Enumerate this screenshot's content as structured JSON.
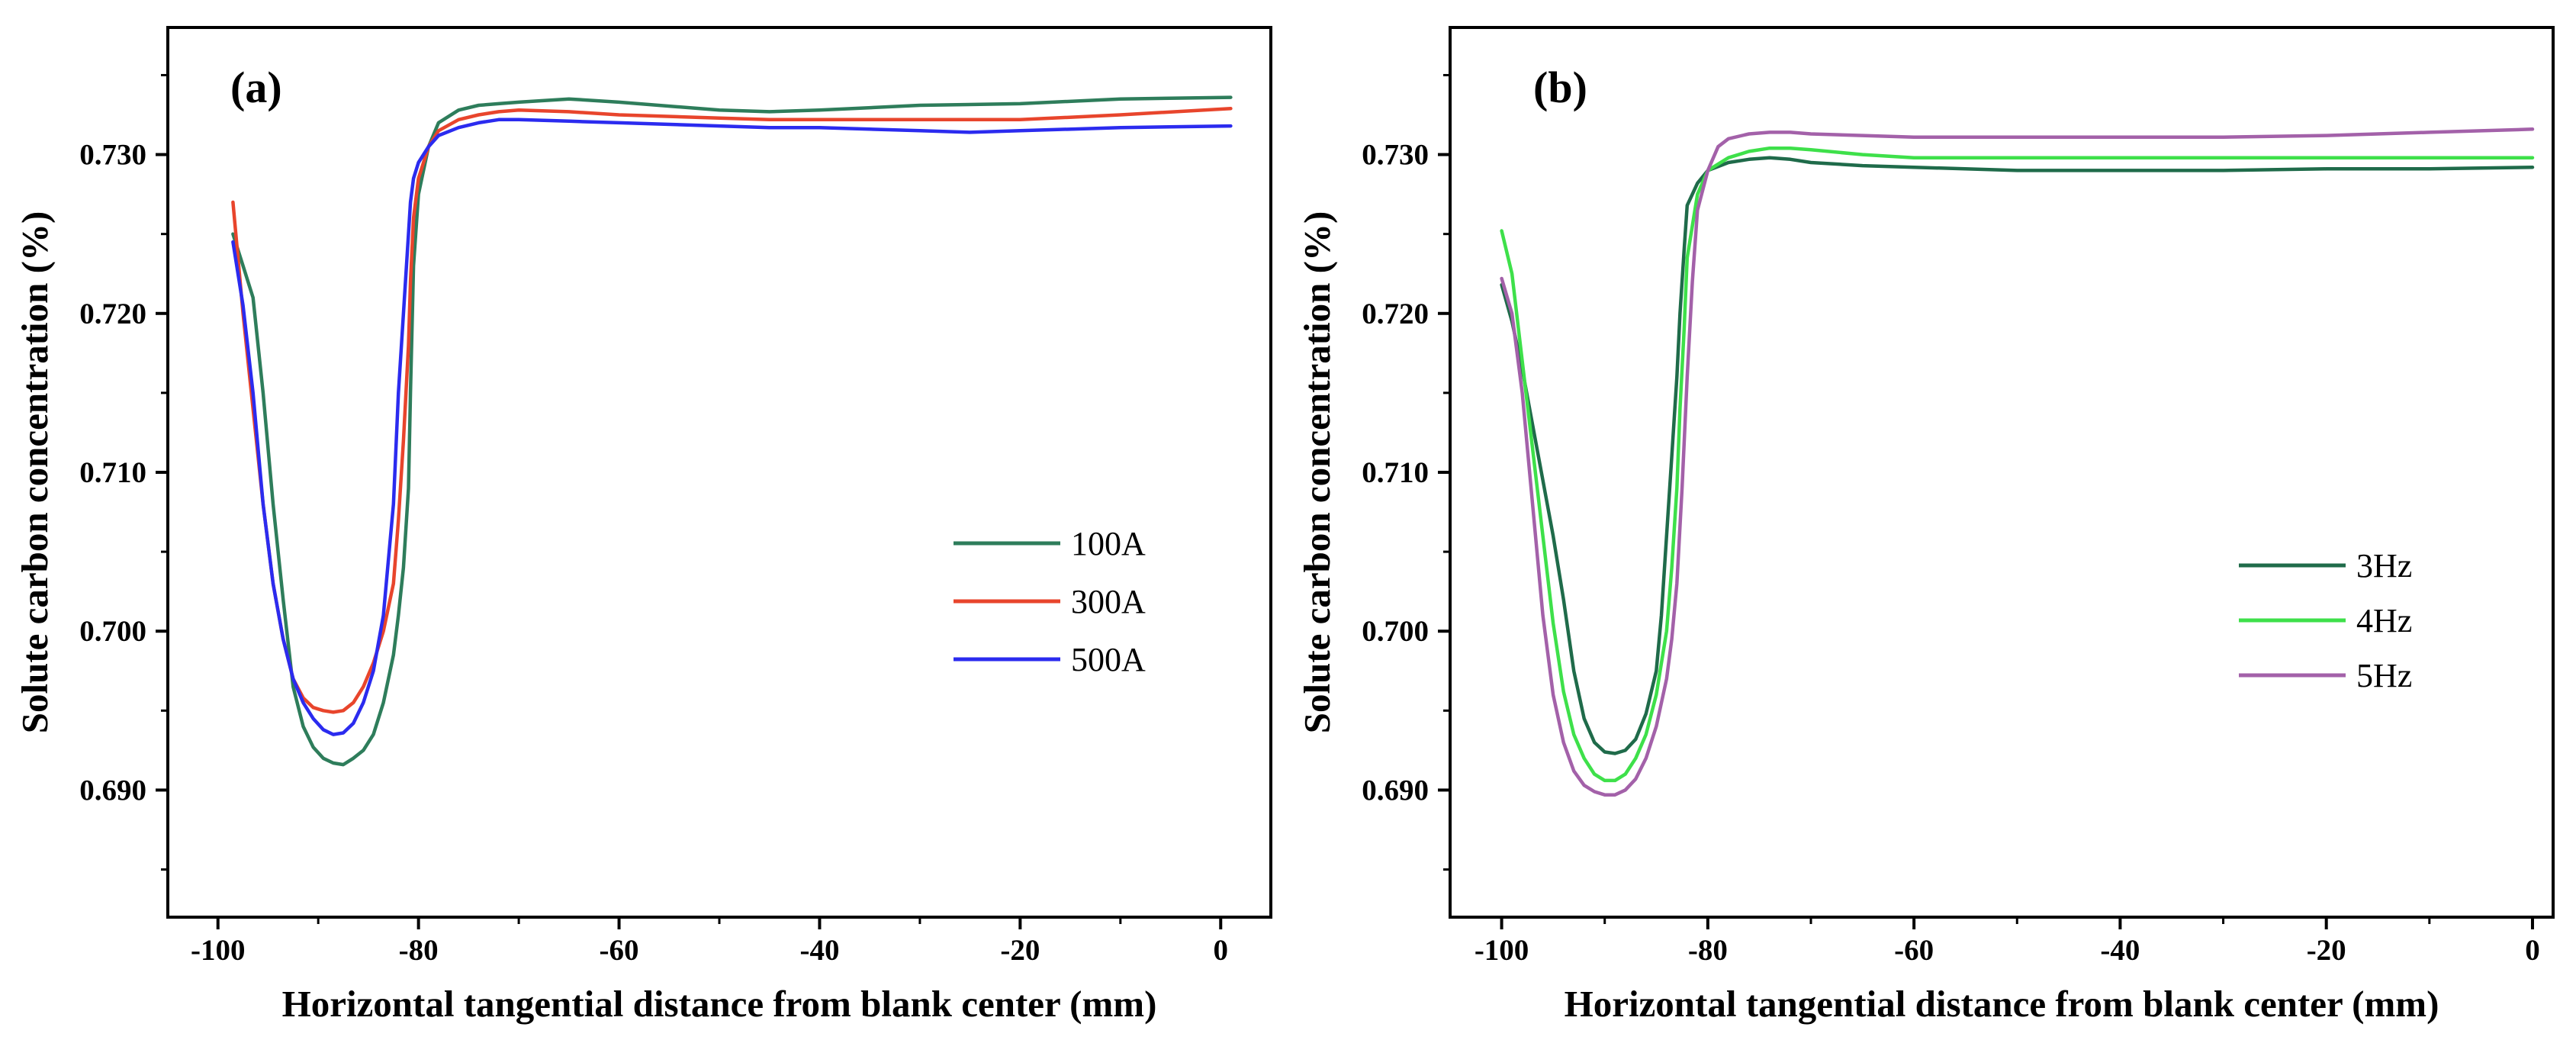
{
  "chart_data": [
    {
      "type": "line",
      "panel_label": "(a)",
      "xlabel": "Horizontal tangential distance from blank center (mm)",
      "ylabel": "Solute carbon concentration (%)",
      "xlim": [
        -105,
        5
      ],
      "ylim": [
        0.682,
        0.738
      ],
      "xticks": [
        -100,
        -80,
        -60,
        -40,
        -20,
        0
      ],
      "xtick_labels": [
        "-100",
        "-80",
        "-60",
        "-40",
        "-20",
        "0"
      ],
      "yticks": [
        0.69,
        0.7,
        0.71,
        0.72,
        0.73
      ],
      "ytick_labels": [
        "0.690",
        "0.700",
        "0.710",
        "0.720",
        "0.730"
      ],
      "legend_position": "center-right",
      "series": [
        {
          "name": "100A",
          "color": "#2e7d5b",
          "x": [
            -98.5,
            -97.5,
            -96.5,
            -95.5,
            -94.5,
            -93.5,
            -92.5,
            -91.5,
            -90.5,
            -89.5,
            -88.5,
            -87.5,
            -86.5,
            -85.5,
            -84.5,
            -83.5,
            -82.5,
            -82.0,
            -81.5,
            -81.0,
            -80.8,
            -80.5,
            -80.0,
            -79.0,
            -78.0,
            -76.0,
            -74.0,
            -72.0,
            -70.0,
            -65.0,
            -60.0,
            -50.0,
            -45.0,
            -40.0,
            -30.0,
            -20.0,
            -10.0,
            1.0
          ],
          "y": [
            0.725,
            0.723,
            0.721,
            0.715,
            0.708,
            0.702,
            0.6965,
            0.694,
            0.6927,
            0.692,
            0.6917,
            0.6916,
            0.692,
            0.6925,
            0.6935,
            0.6955,
            0.6985,
            0.701,
            0.704,
            0.709,
            0.715,
            0.723,
            0.7275,
            0.7305,
            0.732,
            0.7328,
            0.7331,
            0.7332,
            0.7333,
            0.7335,
            0.7333,
            0.7328,
            0.7327,
            0.7328,
            0.7331,
            0.7332,
            0.7335,
            0.7336
          ]
        },
        {
          "name": "300A",
          "color": "#e8452c",
          "x": [
            -98.5,
            -97.5,
            -96.5,
            -95.5,
            -94.5,
            -93.5,
            -92.5,
            -91.5,
            -90.5,
            -89.5,
            -88.5,
            -87.5,
            -86.5,
            -85.5,
            -84.5,
            -83.5,
            -82.5,
            -82.0,
            -81.5,
            -81.0,
            -80.8,
            -80.5,
            -80.0,
            -79.0,
            -78.0,
            -76.0,
            -74.0,
            -72.0,
            -70.0,
            -65.0,
            -60.0,
            -50.0,
            -45.0,
            -40.0,
            -30.0,
            -20.0,
            -10.0,
            1.0
          ],
          "y": [
            0.727,
            0.72,
            0.714,
            0.708,
            0.703,
            0.6995,
            0.697,
            0.6958,
            0.6952,
            0.695,
            0.6949,
            0.695,
            0.6955,
            0.6965,
            0.698,
            0.7,
            0.703,
            0.707,
            0.712,
            0.718,
            0.722,
            0.726,
            0.7285,
            0.7305,
            0.7315,
            0.7322,
            0.7325,
            0.7327,
            0.7328,
            0.7327,
            0.7325,
            0.7323,
            0.7322,
            0.7322,
            0.7322,
            0.7322,
            0.7325,
            0.7329
          ]
        },
        {
          "name": "500A",
          "color": "#2b2bef",
          "x": [
            -98.5,
            -97.5,
            -96.5,
            -95.5,
            -94.5,
            -93.5,
            -92.5,
            -91.5,
            -90.5,
            -89.5,
            -88.5,
            -87.5,
            -86.5,
            -85.5,
            -84.5,
            -83.5,
            -82.5,
            -82.0,
            -81.5,
            -81.0,
            -80.8,
            -80.5,
            -80.0,
            -79.0,
            -78.0,
            -76.0,
            -74.0,
            -72.0,
            -70.0,
            -65.0,
            -60.0,
            -50.0,
            -45.0,
            -40.0,
            -30.0,
            -25.0,
            -20.0,
            -10.0,
            1.0
          ],
          "y": [
            0.7245,
            0.7205,
            0.715,
            0.708,
            0.703,
            0.6995,
            0.697,
            0.6955,
            0.6945,
            0.6938,
            0.6935,
            0.6936,
            0.6942,
            0.6955,
            0.6975,
            0.701,
            0.708,
            0.715,
            0.72,
            0.725,
            0.727,
            0.7285,
            0.7295,
            0.7305,
            0.7312,
            0.7317,
            0.732,
            0.7322,
            0.7322,
            0.7321,
            0.732,
            0.7318,
            0.7317,
            0.7317,
            0.7315,
            0.7314,
            0.7315,
            0.7317,
            0.7318
          ]
        }
      ]
    },
    {
      "type": "line",
      "panel_label": "(b)",
      "xlabel": "Horizontal tangential distance from blank center (mm)",
      "ylabel": "Solute carbon concentration (%)",
      "xlim": [
        -105,
        2
      ],
      "ylim": [
        0.682,
        0.738
      ],
      "xticks": [
        -100,
        -80,
        -60,
        -40,
        -20,
        0
      ],
      "xtick_labels": [
        "-100",
        "-80",
        "-60",
        "-40",
        "-20",
        "0"
      ],
      "yticks": [
        0.69,
        0.7,
        0.71,
        0.72,
        0.73
      ],
      "ytick_labels": [
        "0.690",
        "0.700",
        "0.710",
        "0.720",
        "0.730"
      ],
      "legend_position": "center-right",
      "series": [
        {
          "name": "3Hz",
          "color": "#1f6b4a",
          "x": [
            -100.0,
            -99.0,
            -98.0,
            -97.0,
            -96.0,
            -95.0,
            -94.0,
            -93.0,
            -92.0,
            -91.0,
            -90.0,
            -89.0,
            -88.0,
            -87.0,
            -86.0,
            -85.0,
            -84.5,
            -84.0,
            -83.5,
            -83.0,
            -82.7,
            -82.3,
            -82.0,
            -81.0,
            -80.0,
            -78.0,
            -76.0,
            -74.0,
            -72.0,
            -70.0,
            -65.0,
            -60.0,
            -50.0,
            -40.0,
            -30.0,
            -20.0,
            -10.0,
            0.0
          ],
          "y": [
            0.7218,
            0.7195,
            0.7165,
            0.713,
            0.7095,
            0.706,
            0.702,
            0.6975,
            0.6945,
            0.693,
            0.6924,
            0.6923,
            0.6925,
            0.6932,
            0.6948,
            0.6975,
            0.701,
            0.706,
            0.711,
            0.716,
            0.72,
            0.724,
            0.7268,
            0.7282,
            0.729,
            0.7295,
            0.7297,
            0.7298,
            0.7297,
            0.7295,
            0.7293,
            0.7292,
            0.729,
            0.729,
            0.729,
            0.7291,
            0.7291,
            0.7292
          ]
        },
        {
          "name": "4Hz",
          "color": "#3ee04a",
          "x": [
            -100.0,
            -99.0,
            -98.0,
            -97.0,
            -96.0,
            -95.0,
            -94.0,
            -93.0,
            -92.0,
            -91.0,
            -90.0,
            -89.0,
            -88.0,
            -87.0,
            -86.0,
            -85.0,
            -84.0,
            -83.5,
            -83.0,
            -82.7,
            -82.3,
            -82.0,
            -81.0,
            -80.0,
            -78.0,
            -76.0,
            -74.0,
            -72.0,
            -70.0,
            -65.0,
            -60.0,
            -50.0,
            -40.0,
            -30.0,
            -20.0,
            -10.0,
            0.0
          ],
          "y": [
            0.7252,
            0.7225,
            0.717,
            0.7115,
            0.706,
            0.7005,
            0.6962,
            0.6935,
            0.692,
            0.691,
            0.6906,
            0.6906,
            0.691,
            0.692,
            0.6935,
            0.696,
            0.7,
            0.704,
            0.709,
            0.714,
            0.719,
            0.7235,
            0.7275,
            0.729,
            0.7298,
            0.7302,
            0.7304,
            0.7304,
            0.7303,
            0.73,
            0.7298,
            0.7298,
            0.7298,
            0.7298,
            0.7298,
            0.7298,
            0.7298
          ]
        },
        {
          "name": "5Hz",
          "color": "#a361a9",
          "x": [
            -100.0,
            -99.0,
            -98.0,
            -97.0,
            -96.0,
            -95.0,
            -94.0,
            -93.0,
            -92.0,
            -91.0,
            -90.0,
            -89.0,
            -88.0,
            -87.0,
            -86.0,
            -85.0,
            -84.0,
            -83.5,
            -83.0,
            -82.5,
            -82.0,
            -81.5,
            -81.0,
            -80.0,
            -79.0,
            -78.0,
            -76.0,
            -74.0,
            -72.0,
            -70.0,
            -65.0,
            -60.0,
            -50.0,
            -40.0,
            -30.0,
            -20.0,
            -10.0,
            0.0
          ],
          "y": [
            0.7222,
            0.72,
            0.715,
            0.708,
            0.701,
            0.696,
            0.693,
            0.6912,
            0.6903,
            0.6899,
            0.6897,
            0.6897,
            0.69,
            0.6907,
            0.692,
            0.694,
            0.697,
            0.6995,
            0.703,
            0.709,
            0.716,
            0.722,
            0.7265,
            0.729,
            0.7305,
            0.731,
            0.7313,
            0.7314,
            0.7314,
            0.7313,
            0.7312,
            0.7311,
            0.7311,
            0.7311,
            0.7311,
            0.7312,
            0.7314,
            0.7316
          ]
        }
      ]
    }
  ]
}
